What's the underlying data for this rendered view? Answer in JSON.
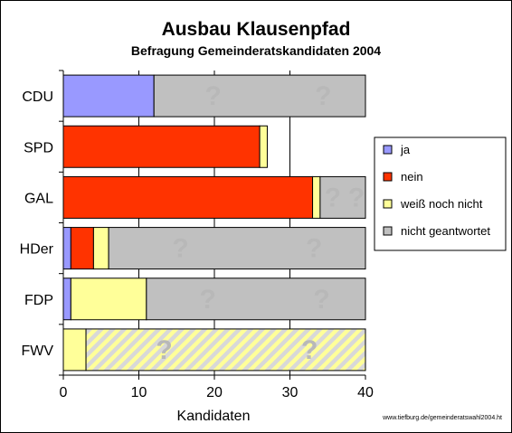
{
  "chart_data": {
    "type": "bar",
    "orientation": "horizontal",
    "stacked": true,
    "title": "Ausbau Klausenpfad",
    "subtitle": "Befragung Gemeinderatskandidaten 2004",
    "xlabel": "Kandidaten",
    "ylabel": "",
    "xlim": [
      0,
      40
    ],
    "xticks": [
      "0",
      "10",
      "20",
      "30",
      "40"
    ],
    "categories": [
      "CDU",
      "SPD",
      "GAL",
      "HDer",
      "FDP",
      "FWV"
    ],
    "series": [
      {
        "name": "ja",
        "color": "#9999ff",
        "values": [
          12,
          0,
          0,
          1,
          1,
          0
        ]
      },
      {
        "name": "nein",
        "color": "#ff3300",
        "values": [
          0,
          26,
          33,
          3,
          0,
          0
        ]
      },
      {
        "name": "weiß noch nicht",
        "color": "#ffff99",
        "values": [
          0,
          1,
          1,
          2,
          10,
          3
        ]
      },
      {
        "name": "nicht geantwortet",
        "color": "#c0c0c0",
        "values": [
          28,
          0,
          6,
          34,
          29,
          37
        ]
      }
    ],
    "hatched_category": "FWV",
    "unanswered_symbol": "?",
    "grid": "vertical",
    "legend": "right",
    "source": "www.tiefburg.de/gemeinderatswahl2004.ht"
  }
}
